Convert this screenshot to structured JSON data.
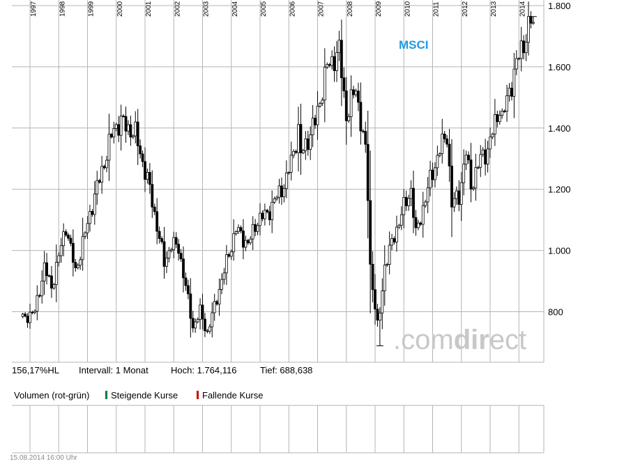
{
  "chart_data": {
    "type": "candlestick",
    "title": "MSCI",
    "interval": "monthly",
    "ylim": [
      660,
      1800
    ],
    "y_ticks": [
      800,
      1000,
      1200,
      1400,
      1600,
      1800
    ],
    "y_tick_labels": [
      "800",
      "1.000",
      "1.200",
      "1.400",
      "1.600",
      "1.800"
    ],
    "x_ticks": [
      "1997",
      "1998",
      "1999",
      "2000",
      "2001",
      "2002",
      "2003",
      "2004",
      "2005",
      "2006",
      "2007",
      "2008",
      "2009",
      "2010",
      "2011",
      "2012",
      "2013",
      "2014"
    ],
    "anchors": [
      [
        "1996-10",
        778
      ],
      [
        "1997-03",
        800
      ],
      [
        "1997-07",
        945
      ],
      [
        "1997-10",
        880
      ],
      [
        "1998-04",
        1080
      ],
      [
        "1998-08",
        930
      ],
      [
        "1999-03",
        1150
      ],
      [
        "1999-12",
        1400
      ],
      [
        "2000-03",
        1420
      ],
      [
        "2000-09",
        1380
      ],
      [
        "2001-03",
        1200
      ],
      [
        "2001-09",
        960
      ],
      [
        "2001-12",
        1020
      ],
      [
        "2002-03",
        1010
      ],
      [
        "2002-09",
        750
      ],
      [
        "2002-12",
        800
      ],
      [
        "2003-03",
        730
      ],
      [
        "2003-12",
        990
      ],
      [
        "2004-03",
        1070
      ],
      [
        "2004-08",
        1020
      ],
      [
        "2004-12",
        1100
      ],
      [
        "2005-04",
        1120
      ],
      [
        "2005-12",
        1230
      ],
      [
        "2006-05",
        1390
      ],
      [
        "2006-06",
        1310
      ],
      [
        "2006-12",
        1420
      ],
      [
        "2007-05",
        1600
      ],
      [
        "2007-10",
        1650
      ],
      [
        "2008-01",
        1440
      ],
      [
        "2008-05",
        1530
      ],
      [
        "2008-09",
        1320
      ],
      [
        "2008-10",
        1180
      ],
      [
        "2008-11",
        950
      ],
      [
        "2009-02",
        750
      ],
      [
        "2009-03",
        800
      ],
      [
        "2009-05",
        950
      ],
      [
        "2009-12",
        1120
      ],
      [
        "2010-04",
        1200
      ],
      [
        "2010-06",
        1050
      ],
      [
        "2010-12",
        1230
      ],
      [
        "2011-04",
        1330
      ],
      [
        "2011-07",
        1380
      ],
      [
        "2011-09",
        1150
      ],
      [
        "2011-12",
        1180
      ],
      [
        "2012-03",
        1320
      ],
      [
        "2012-05",
        1210
      ],
      [
        "2012-09",
        1300
      ],
      [
        "2012-12",
        1330
      ],
      [
        "2013-05",
        1470
      ],
      [
        "2013-06",
        1430
      ],
      [
        "2013-12",
        1610
      ],
      [
        "2014-06",
        1750
      ],
      [
        "2014-07",
        1730
      ]
    ],
    "hoch_date": "2014-07",
    "tief_date": "2009-03",
    "hoch": 1764.116,
    "tief": 688.638,
    "colors": {
      "grid": "#b4b4b4",
      "candle": "#000000",
      "up": "#0a7a3c",
      "down": "#cc0000",
      "title": "#1e9be0",
      "watermark": "#c8c8c8",
      "axis_text": "#000000"
    }
  },
  "watermark": {
    "dot_com": ".com",
    "dir": "dir",
    "ect": "ect"
  },
  "info": {
    "range_text": "156,17%HL",
    "interval_text": "Intervall: 1 Monat",
    "hoch_text": "Hoch: 1.764,116",
    "tief_text": "Tief:  688,638"
  },
  "volume": {
    "title_text": "Volumen (rot-grün)",
    "rising_text": "Steigende Kurse",
    "falling_text": "Fallende Kurse"
  },
  "footer": {
    "timestamp": "15.08.2014 16:00 Uhr"
  }
}
